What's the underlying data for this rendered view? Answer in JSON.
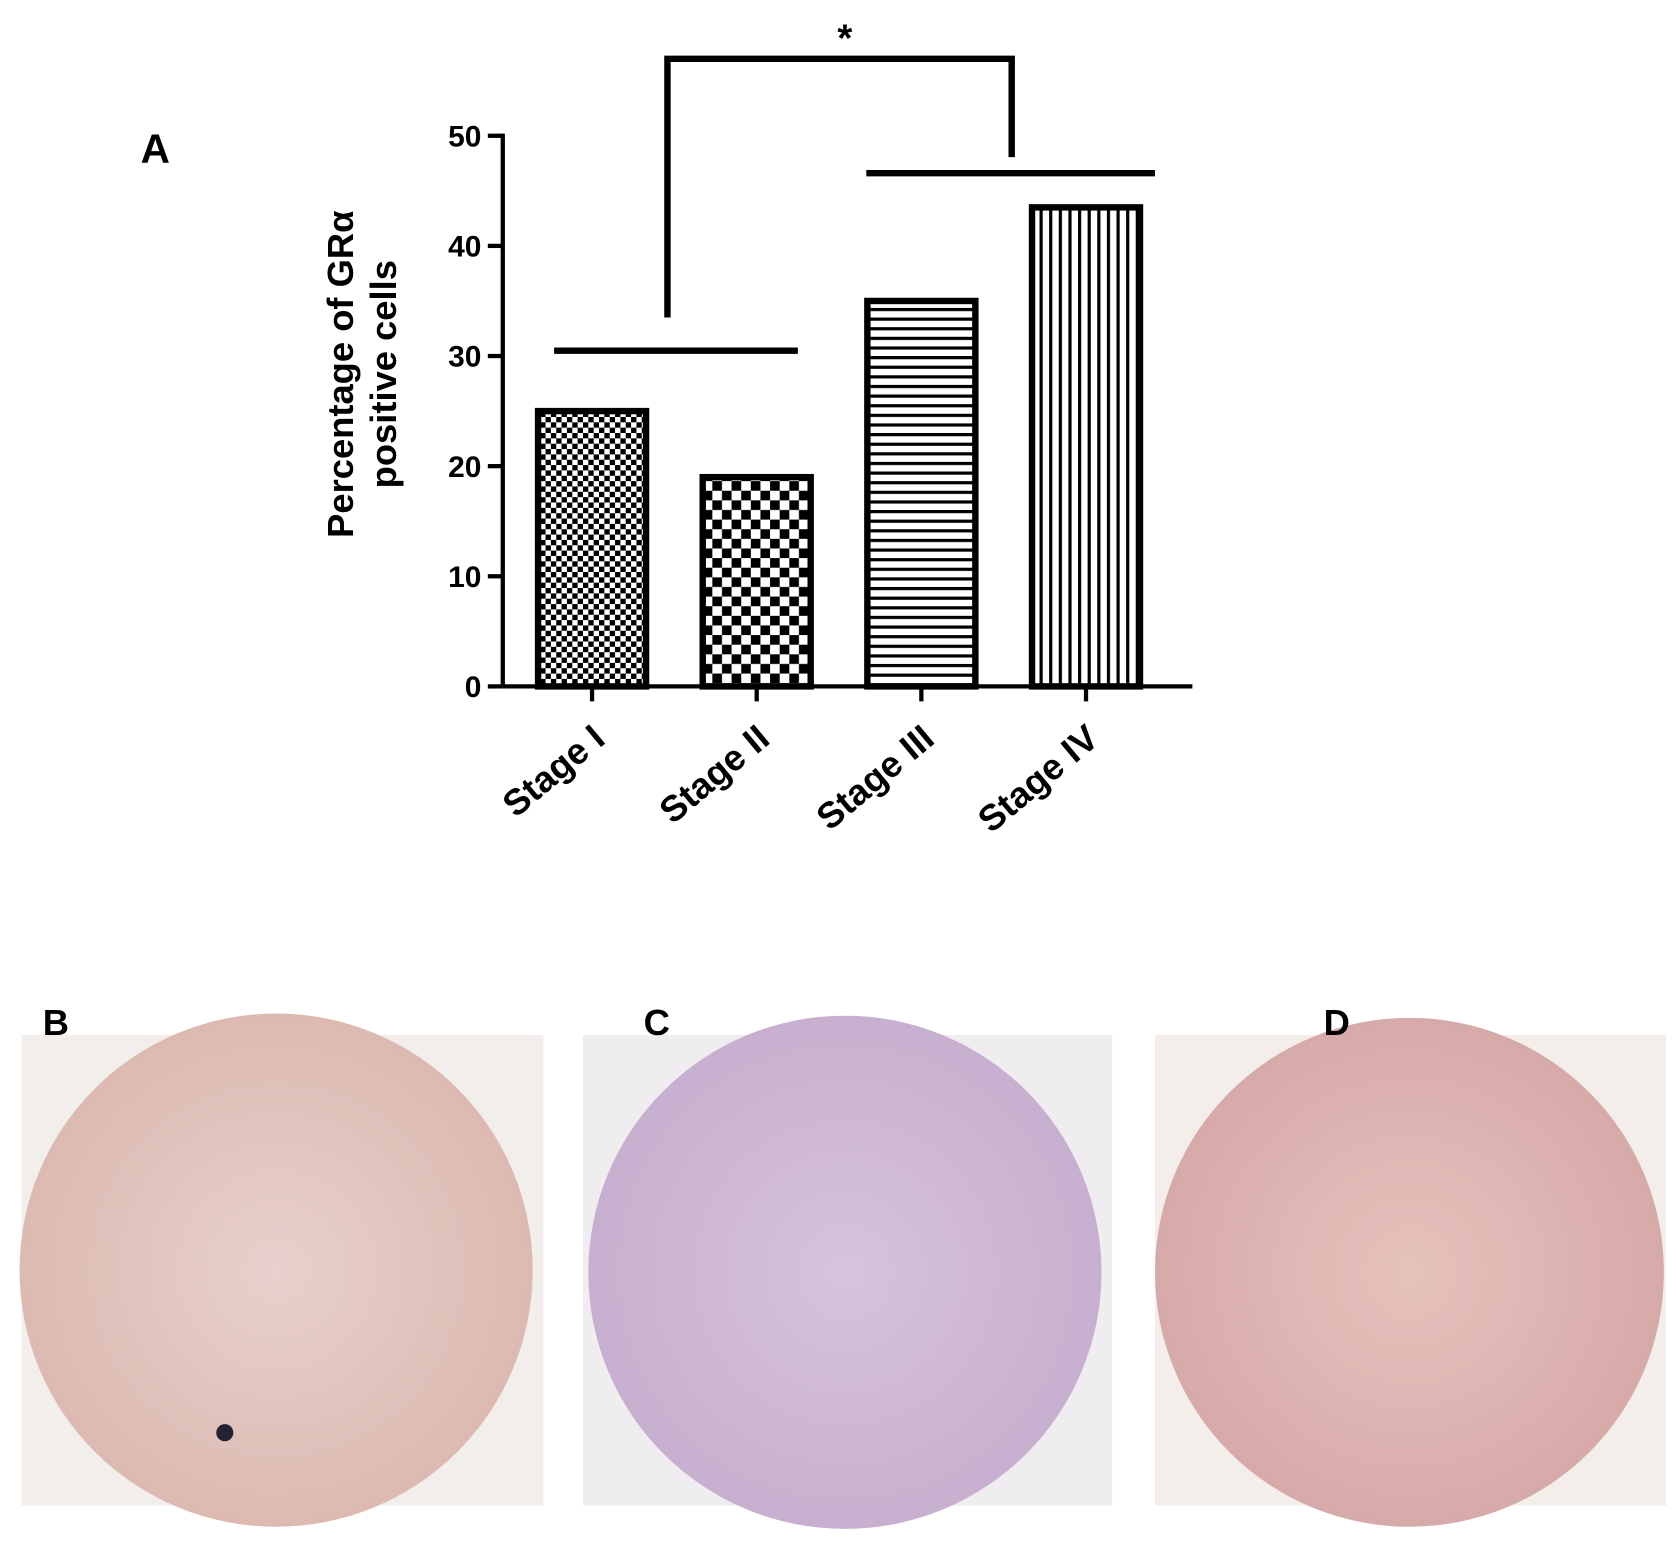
{
  "chart_data": {
    "type": "bar",
    "panel_label": "A",
    "ylabel": [
      "Percentage of GRα",
      "positive cells"
    ],
    "categories": [
      "Stage I",
      "Stage II",
      "Stage III",
      "Stage IV"
    ],
    "values": [
      25,
      19,
      35,
      43.5
    ],
    "ylim": [
      0,
      50
    ],
    "yticks": [
      0,
      10,
      20,
      30,
      40,
      50
    ],
    "annotations": [
      "*"
    ]
  },
  "image_panels": [
    {
      "label": "B"
    },
    {
      "label": "C"
    },
    {
      "label": "D"
    }
  ]
}
